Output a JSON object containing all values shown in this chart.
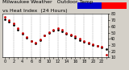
{
  "title": "Milwaukee Weather   Outdoor Temp",
  "subtitle": "vs Heat Index  (24 Hours)",
  "bg_color": "#d4d0c8",
  "plot_bg": "#ffffff",
  "legend_blue": "#0000cc",
  "legend_red": "#ff0000",
  "temp_color": "#000000",
  "heat_color": "#cc0000",
  "ylim": [
    10,
    80
  ],
  "yticks": [
    10,
    20,
    30,
    40,
    50,
    60,
    70,
    80
  ],
  "xlim": [
    -0.5,
    23.5
  ],
  "hours": [
    0,
    1,
    2,
    3,
    4,
    5,
    6,
    7,
    8,
    9,
    10,
    11,
    12,
    13,
    14,
    15,
    16,
    17,
    18,
    19,
    20,
    21,
    22,
    23
  ],
  "temp": [
    72,
    68,
    62,
    55,
    48,
    41,
    36,
    33,
    38,
    45,
    50,
    53,
    55,
    52,
    48,
    45,
    42,
    38,
    35,
    32,
    30,
    28,
    26,
    24
  ],
  "heat": [
    75,
    70,
    65,
    57,
    50,
    43,
    37,
    34,
    39,
    46,
    51,
    55,
    57,
    54,
    50,
    47,
    44,
    40,
    37,
    34,
    31,
    29,
    27,
    14
  ],
  "vgrid_x": [
    2,
    4,
    6,
    8,
    10,
    12,
    14,
    16,
    18,
    20,
    22
  ],
  "xtick_labels": [
    "0",
    "",
    "2",
    "",
    "4",
    "",
    "6",
    "",
    "8",
    "",
    "10",
    "",
    "12",
    "",
    "14",
    "",
    "16",
    "",
    "18",
    "",
    "20",
    "",
    "22",
    ""
  ],
  "title_fontsize": 4.5,
  "tick_fontsize": 3.5,
  "marker_size": 1.0
}
